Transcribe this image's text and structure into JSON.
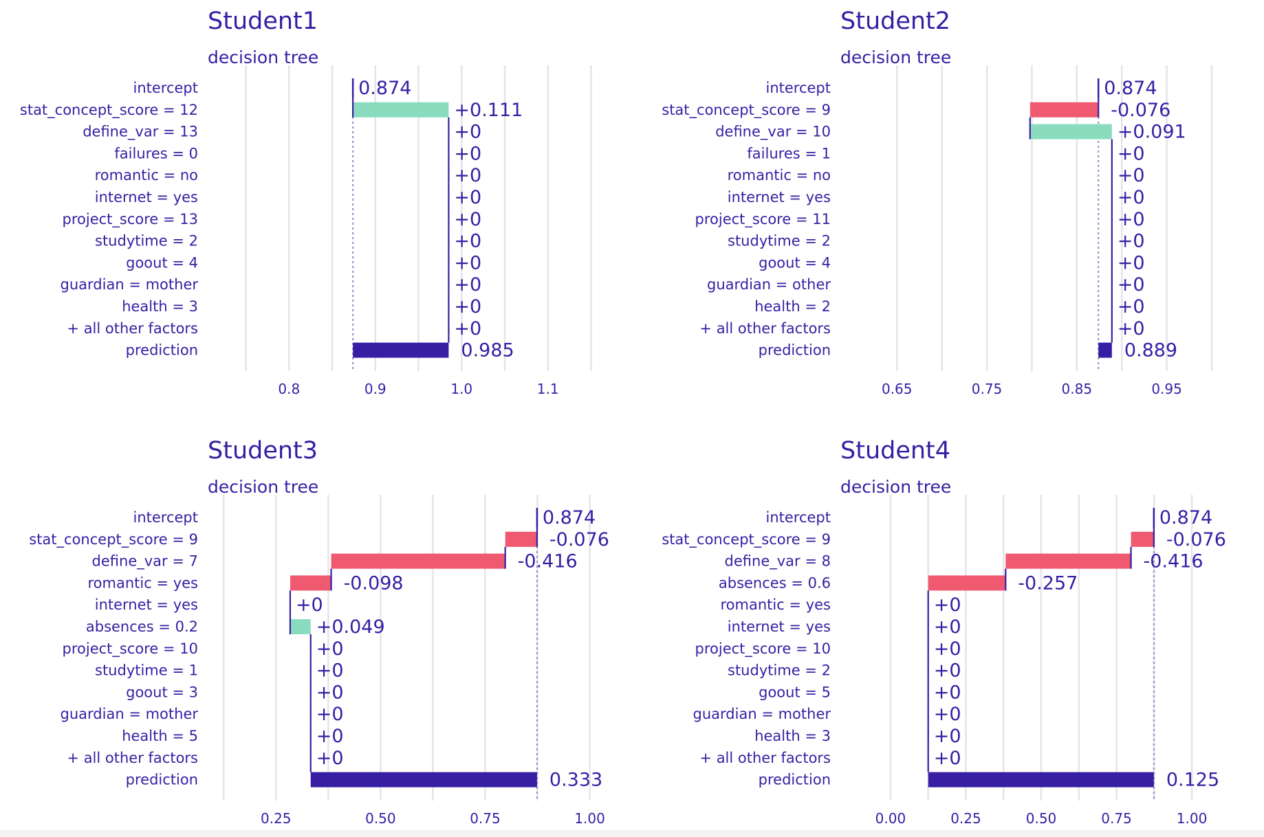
{
  "colors": {
    "text": "#371ea3",
    "positive": "#8bdcbe",
    "negative": "#f05a71",
    "prediction": "#371ea3",
    "grid": "#e4e4ea",
    "baseline": "#9a91c9"
  },
  "chart_data": [
    {
      "type": "bar",
      "title": "Student1",
      "subtitle": "decision tree",
      "grid": true,
      "xlim": [
        0.74,
        1.16
      ],
      "xticks": [
        0.8,
        0.9,
        1.0,
        1.1
      ],
      "xtick_labels": [
        "0.8",
        "0.9",
        "1.0",
        "1.1"
      ],
      "gridlines": [
        0.75,
        0.8,
        0.85,
        0.9,
        0.95,
        1.0,
        1.05,
        1.1,
        1.15
      ],
      "intercept": 0.874,
      "prediction": 0.985,
      "rows": [
        {
          "label": "intercept",
          "type": "intercept",
          "start": 0.874,
          "end": 0.874,
          "value_label": "0.874"
        },
        {
          "label": "stat_concept_score = 12",
          "type": "contrib",
          "start": 0.874,
          "end": 0.985,
          "value_label": "+0.111"
        },
        {
          "label": "define_var = 13",
          "type": "contrib",
          "start": 0.985,
          "end": 0.985,
          "value_label": "+0"
        },
        {
          "label": "failures = 0",
          "type": "contrib",
          "start": 0.985,
          "end": 0.985,
          "value_label": "+0"
        },
        {
          "label": "romantic = no",
          "type": "contrib",
          "start": 0.985,
          "end": 0.985,
          "value_label": "+0"
        },
        {
          "label": "internet = yes",
          "type": "contrib",
          "start": 0.985,
          "end": 0.985,
          "value_label": "+0"
        },
        {
          "label": "project_score = 13",
          "type": "contrib",
          "start": 0.985,
          "end": 0.985,
          "value_label": "+0"
        },
        {
          "label": "studytime = 2",
          "type": "contrib",
          "start": 0.985,
          "end": 0.985,
          "value_label": "+0"
        },
        {
          "label": "goout = 4",
          "type": "contrib",
          "start": 0.985,
          "end": 0.985,
          "value_label": "+0"
        },
        {
          "label": "guardian = mother",
          "type": "contrib",
          "start": 0.985,
          "end": 0.985,
          "value_label": "+0"
        },
        {
          "label": "health = 3",
          "type": "contrib",
          "start": 0.985,
          "end": 0.985,
          "value_label": "+0"
        },
        {
          "label": "+ all other factors",
          "type": "contrib",
          "start": 0.985,
          "end": 0.985,
          "value_label": "+0"
        },
        {
          "label": "prediction",
          "type": "prediction",
          "start": 0.874,
          "end": 0.985,
          "value_label": "0.985"
        }
      ]
    },
    {
      "type": "bar",
      "title": "Student2",
      "subtitle": "decision tree",
      "grid": true,
      "xlim": [
        0.62,
        1.0
      ],
      "xticks": [
        0.65,
        0.75,
        0.85,
        0.95
      ],
      "xtick_labels": [
        "0.65",
        "0.75",
        "0.85",
        "0.95"
      ],
      "gridlines": [
        0.65,
        0.7,
        0.75,
        0.8,
        0.85,
        0.9,
        0.95,
        1.0
      ],
      "intercept": 0.874,
      "prediction": 0.889,
      "rows": [
        {
          "label": "intercept",
          "type": "intercept",
          "start": 0.874,
          "end": 0.874,
          "value_label": "0.874"
        },
        {
          "label": "stat_concept_score = 9",
          "type": "contrib",
          "start": 0.874,
          "end": 0.798,
          "value_label": "-0.076"
        },
        {
          "label": "define_var = 10",
          "type": "contrib",
          "start": 0.798,
          "end": 0.889,
          "value_label": "+0.091"
        },
        {
          "label": "failures = 1",
          "type": "contrib",
          "start": 0.889,
          "end": 0.889,
          "value_label": "+0"
        },
        {
          "label": "romantic = no",
          "type": "contrib",
          "start": 0.889,
          "end": 0.889,
          "value_label": "+0"
        },
        {
          "label": "internet = yes",
          "type": "contrib",
          "start": 0.889,
          "end": 0.889,
          "value_label": "+0"
        },
        {
          "label": "project_score = 11",
          "type": "contrib",
          "start": 0.889,
          "end": 0.889,
          "value_label": "+0"
        },
        {
          "label": "studytime = 2",
          "type": "contrib",
          "start": 0.889,
          "end": 0.889,
          "value_label": "+0"
        },
        {
          "label": "goout = 4",
          "type": "contrib",
          "start": 0.889,
          "end": 0.889,
          "value_label": "+0"
        },
        {
          "label": "guardian = other",
          "type": "contrib",
          "start": 0.889,
          "end": 0.889,
          "value_label": "+0"
        },
        {
          "label": "health = 2",
          "type": "contrib",
          "start": 0.889,
          "end": 0.889,
          "value_label": "+0"
        },
        {
          "label": "+ all other factors",
          "type": "contrib",
          "start": 0.889,
          "end": 0.889,
          "value_label": "+0"
        },
        {
          "label": "prediction",
          "type": "prediction",
          "start": 0.874,
          "end": 0.889,
          "value_label": "0.889"
        }
      ]
    },
    {
      "type": "bar",
      "title": "Student3",
      "subtitle": "decision tree",
      "grid": true,
      "xlim": [
        0.1,
        1.05
      ],
      "xticks": [
        0.25,
        0.5,
        0.75,
        1.0
      ],
      "xtick_labels": [
        "0.25",
        "0.50",
        "0.75",
        "1.00"
      ],
      "gridlines": [
        0.125,
        0.25,
        0.375,
        0.5,
        0.625,
        0.75,
        0.875,
        1.0
      ],
      "intercept": 0.874,
      "prediction": 0.333,
      "rows": [
        {
          "label": "intercept",
          "type": "intercept",
          "start": 0.874,
          "end": 0.874,
          "value_label": "0.874"
        },
        {
          "label": "stat_concept_score = 9",
          "type": "contrib",
          "start": 0.874,
          "end": 0.798,
          "value_label": "-0.076"
        },
        {
          "label": "define_var = 7",
          "type": "contrib",
          "start": 0.798,
          "end": 0.382,
          "value_label": "-0.416"
        },
        {
          "label": "romantic = yes",
          "type": "contrib",
          "start": 0.382,
          "end": 0.284,
          "value_label": "-0.098"
        },
        {
          "label": "internet = yes",
          "type": "contrib",
          "start": 0.284,
          "end": 0.284,
          "value_label": "+0"
        },
        {
          "label": "absences = 0.2",
          "type": "contrib",
          "start": 0.284,
          "end": 0.333,
          "value_label": "+0.049"
        },
        {
          "label": "project_score = 10",
          "type": "contrib",
          "start": 0.333,
          "end": 0.333,
          "value_label": "+0"
        },
        {
          "label": "studytime = 1",
          "type": "contrib",
          "start": 0.333,
          "end": 0.333,
          "value_label": "+0"
        },
        {
          "label": "goout = 3",
          "type": "contrib",
          "start": 0.333,
          "end": 0.333,
          "value_label": "+0"
        },
        {
          "label": "guardian = mother",
          "type": "contrib",
          "start": 0.333,
          "end": 0.333,
          "value_label": "+0"
        },
        {
          "label": "health = 5",
          "type": "contrib",
          "start": 0.333,
          "end": 0.333,
          "value_label": "+0"
        },
        {
          "label": "+ all other factors",
          "type": "contrib",
          "start": 0.333,
          "end": 0.333,
          "value_label": "+0"
        },
        {
          "label": "prediction",
          "type": "prediction",
          "start": 0.333,
          "end": 0.874,
          "value_label": "0.333"
        }
      ]
    },
    {
      "type": "bar",
      "title": "Student4",
      "subtitle": "decision tree",
      "grid": true,
      "xlim": [
        -0.13,
        1.13
      ],
      "xticks": [
        0.0,
        0.25,
        0.5,
        0.75,
        1.0
      ],
      "xtick_labels": [
        "0.00",
        "0.25",
        "0.50",
        "0.75",
        "1.00"
      ],
      "gridlines": [
        0.0,
        0.125,
        0.25,
        0.375,
        0.5,
        0.625,
        0.75,
        0.875,
        1.0
      ],
      "intercept": 0.874,
      "prediction": 0.125,
      "rows": [
        {
          "label": "intercept",
          "type": "intercept",
          "start": 0.874,
          "end": 0.874,
          "value_label": "0.874"
        },
        {
          "label": "stat_concept_score = 9",
          "type": "contrib",
          "start": 0.874,
          "end": 0.798,
          "value_label": "-0.076"
        },
        {
          "label": "define_var = 8",
          "type": "contrib",
          "start": 0.798,
          "end": 0.382,
          "value_label": "-0.416"
        },
        {
          "label": "absences = 0.6",
          "type": "contrib",
          "start": 0.382,
          "end": 0.125,
          "value_label": "-0.257"
        },
        {
          "label": "romantic = yes",
          "type": "contrib",
          "start": 0.125,
          "end": 0.125,
          "value_label": "+0"
        },
        {
          "label": "internet = yes",
          "type": "contrib",
          "start": 0.125,
          "end": 0.125,
          "value_label": "+0"
        },
        {
          "label": "project_score = 10",
          "type": "contrib",
          "start": 0.125,
          "end": 0.125,
          "value_label": "+0"
        },
        {
          "label": "studytime = 2",
          "type": "contrib",
          "start": 0.125,
          "end": 0.125,
          "value_label": "+0"
        },
        {
          "label": "goout = 5",
          "type": "contrib",
          "start": 0.125,
          "end": 0.125,
          "value_label": "+0"
        },
        {
          "label": "guardian = mother",
          "type": "contrib",
          "start": 0.125,
          "end": 0.125,
          "value_label": "+0"
        },
        {
          "label": "health = 3",
          "type": "contrib",
          "start": 0.125,
          "end": 0.125,
          "value_label": "+0"
        },
        {
          "label": "+ all other factors",
          "type": "contrib",
          "start": 0.125,
          "end": 0.125,
          "value_label": "+0"
        },
        {
          "label": "prediction",
          "type": "prediction",
          "start": 0.125,
          "end": 0.874,
          "value_label": "0.125"
        }
      ]
    }
  ]
}
